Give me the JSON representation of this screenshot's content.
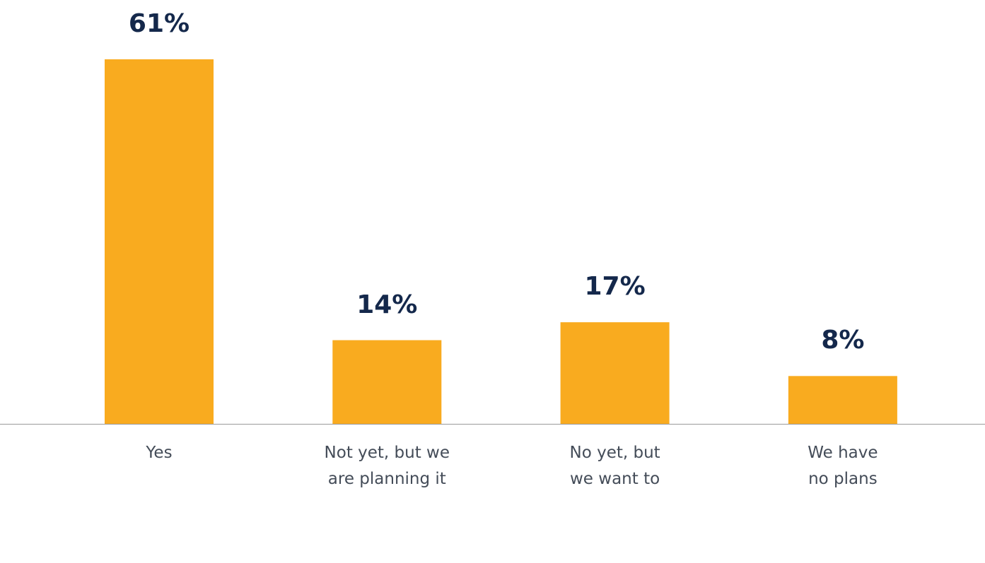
{
  "chart_data": {
    "type": "bar",
    "categories": [
      "Yes",
      "Not yet, but we\nare planning it",
      "No yet, but\nwe want to",
      "We have\nno plans"
    ],
    "values": [
      61,
      14,
      17,
      8
    ],
    "value_labels": [
      "61%",
      "14%",
      "17%",
      "8%"
    ],
    "color": "#f9ab1f"
  }
}
